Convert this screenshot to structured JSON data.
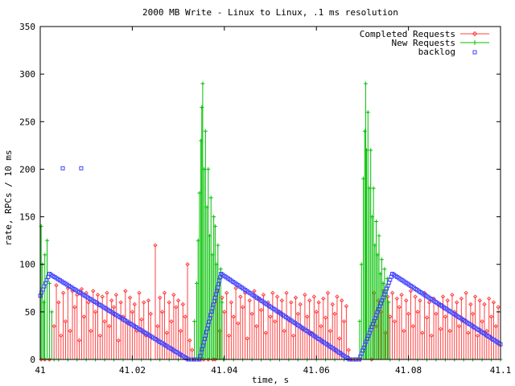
{
  "chart_data": {
    "type": "line",
    "title": "2000 MB Write - Linux to Linux, .1 ms resolution",
    "xlabel": "time, s",
    "ylabel": "rate, RPCs / 10 ms",
    "xlim": [
      41.0,
      41.1
    ],
    "ylim": [
      0,
      350
    ],
    "x_ticks": [
      41,
      41.02,
      41.04,
      41.06,
      41.08,
      41.1
    ],
    "x_tick_labels": [
      "41",
      "41.02",
      "41.04",
      "41.06",
      "41.08",
      "41.1"
    ],
    "y_ticks": [
      0,
      50,
      100,
      150,
      200,
      250,
      300,
      350
    ],
    "grid": false,
    "legend_position": "top-right",
    "series": [
      {
        "name": "Completed Requests",
        "style": "impulses",
        "color": "#ff4040",
        "marker": "diamond",
        "points": [
          [
            41.0002,
            0
          ],
          [
            41.001,
            0
          ],
          [
            41.002,
            0
          ],
          [
            41.003,
            35
          ],
          [
            41.0035,
            78
          ],
          [
            41.004,
            60
          ],
          [
            41.0045,
            25
          ],
          [
            41.005,
            70
          ],
          [
            41.0055,
            40
          ],
          [
            41.006,
            75
          ],
          [
            41.0065,
            30
          ],
          [
            41.007,
            72
          ],
          [
            41.0075,
            55
          ],
          [
            41.008,
            68
          ],
          [
            41.0085,
            20
          ],
          [
            41.009,
            74
          ],
          [
            41.0095,
            45
          ],
          [
            41.01,
            70
          ],
          [
            41.0105,
            60
          ],
          [
            41.011,
            30
          ],
          [
            41.0115,
            72
          ],
          [
            41.012,
            50
          ],
          [
            41.0125,
            68
          ],
          [
            41.013,
            25
          ],
          [
            41.0135,
            66
          ],
          [
            41.014,
            40
          ],
          [
            41.0145,
            70
          ],
          [
            41.015,
            35
          ],
          [
            41.0155,
            62
          ],
          [
            41.016,
            55
          ],
          [
            41.0165,
            68
          ],
          [
            41.017,
            20
          ],
          [
            41.0175,
            60
          ],
          [
            41.018,
            45
          ],
          [
            41.0185,
            72
          ],
          [
            41.019,
            38
          ],
          [
            41.0195,
            65
          ],
          [
            41.02,
            50
          ],
          [
            41.0205,
            58
          ],
          [
            41.021,
            30
          ],
          [
            41.0215,
            70
          ],
          [
            41.022,
            42
          ],
          [
            41.0225,
            60
          ],
          [
            41.023,
            25
          ],
          [
            41.0235,
            62
          ],
          [
            41.024,
            48
          ],
          [
            41.025,
            120
          ],
          [
            41.0255,
            35
          ],
          [
            41.026,
            65
          ],
          [
            41.0265,
            50
          ],
          [
            41.027,
            70
          ],
          [
            41.0275,
            28
          ],
          [
            41.028,
            60
          ],
          [
            41.0285,
            40
          ],
          [
            41.029,
            68
          ],
          [
            41.0295,
            55
          ],
          [
            41.03,
            62
          ],
          [
            41.0305,
            30
          ],
          [
            41.031,
            58
          ],
          [
            41.0315,
            45
          ],
          [
            41.032,
            100
          ],
          [
            41.0325,
            20
          ],
          [
            41.033,
            10
          ],
          [
            41.0335,
            0
          ],
          [
            41.0345,
            0
          ],
          [
            41.0355,
            0
          ],
          [
            41.0365,
            0
          ],
          [
            41.0375,
            0
          ],
          [
            41.038,
            0
          ],
          [
            41.0385,
            72
          ],
          [
            41.039,
            30
          ],
          [
            41.0395,
            65
          ],
          [
            41.04,
            50
          ],
          [
            41.0405,
            70
          ],
          [
            41.041,
            25
          ],
          [
            41.0415,
            60
          ],
          [
            41.042,
            45
          ],
          [
            41.0425,
            75
          ],
          [
            41.043,
            38
          ],
          [
            41.0435,
            66
          ],
          [
            41.044,
            55
          ],
          [
            41.0445,
            70
          ],
          [
            41.045,
            22
          ],
          [
            41.0455,
            62
          ],
          [
            41.046,
            48
          ],
          [
            41.0465,
            72
          ],
          [
            41.047,
            35
          ],
          [
            41.0475,
            64
          ],
          [
            41.048,
            52
          ],
          [
            41.0485,
            68
          ],
          [
            41.049,
            28
          ],
          [
            41.0495,
            60
          ],
          [
            41.05,
            45
          ],
          [
            41.0505,
            70
          ],
          [
            41.051,
            40
          ],
          [
            41.0515,
            66
          ],
          [
            41.052,
            50
          ],
          [
            41.0525,
            62
          ],
          [
            41.053,
            30
          ],
          [
            41.0535,
            70
          ],
          [
            41.054,
            42
          ],
          [
            41.0545,
            60
          ],
          [
            41.055,
            25
          ],
          [
            41.0555,
            65
          ],
          [
            41.056,
            48
          ],
          [
            41.0565,
            58
          ],
          [
            41.057,
            32
          ],
          [
            41.0575,
            68
          ],
          [
            41.058,
            45
          ],
          [
            41.0585,
            62
          ],
          [
            41.059,
            28
          ],
          [
            41.0595,
            66
          ],
          [
            41.06,
            50
          ],
          [
            41.0605,
            60
          ],
          [
            41.061,
            35
          ],
          [
            41.0615,
            64
          ],
          [
            41.062,
            44
          ],
          [
            41.0625,
            70
          ],
          [
            41.063,
            30
          ],
          [
            41.0635,
            58
          ],
          [
            41.064,
            48
          ],
          [
            41.0645,
            66
          ],
          [
            41.065,
            22
          ],
          [
            41.0655,
            62
          ],
          [
            41.066,
            40
          ],
          [
            41.0665,
            56
          ],
          [
            41.067,
            10
          ],
          [
            41.0675,
            0
          ],
          [
            41.0685,
            0
          ],
          [
            41.0695,
            0
          ],
          [
            41.072,
            0
          ],
          [
            41.0725,
            70
          ],
          [
            41.073,
            35
          ],
          [
            41.0735,
            62
          ],
          [
            41.074,
            50
          ],
          [
            41.0745,
            72
          ],
          [
            41.075,
            28
          ],
          [
            41.0755,
            66
          ],
          [
            41.076,
            45
          ],
          [
            41.0765,
            70
          ],
          [
            41.077,
            40
          ],
          [
            41.0775,
            64
          ],
          [
            41.078,
            55
          ],
          [
            41.0785,
            68
          ],
          [
            41.079,
            30
          ],
          [
            41.0795,
            62
          ],
          [
            41.08,
            48
          ],
          [
            41.0805,
            72
          ],
          [
            41.081,
            35
          ],
          [
            41.0815,
            66
          ],
          [
            41.082,
            50
          ],
          [
            41.0825,
            62
          ],
          [
            41.083,
            28
          ],
          [
            41.0835,
            70
          ],
          [
            41.084,
            44
          ],
          [
            41.0845,
            60
          ],
          [
            41.085,
            25
          ],
          [
            41.0855,
            64
          ],
          [
            41.086,
            48
          ],
          [
            41.0865,
            58
          ],
          [
            41.087,
            32
          ],
          [
            41.0875,
            66
          ],
          [
            41.088,
            45
          ],
          [
            41.0885,
            62
          ],
          [
            41.089,
            30
          ],
          [
            41.0895,
            68
          ],
          [
            41.09,
            50
          ],
          [
            41.0905,
            60
          ],
          [
            41.091,
            35
          ],
          [
            41.0915,
            64
          ],
          [
            41.092,
            42
          ],
          [
            41.0925,
            70
          ],
          [
            41.093,
            28
          ],
          [
            41.0935,
            58
          ],
          [
            41.094,
            48
          ],
          [
            41.0945,
            66
          ],
          [
            41.095,
            25
          ],
          [
            41.0955,
            62
          ],
          [
            41.096,
            40
          ],
          [
            41.0965,
            58
          ],
          [
            41.097,
            30
          ],
          [
            41.0975,
            64
          ],
          [
            41.098,
            45
          ],
          [
            41.0985,
            60
          ],
          [
            41.099,
            35
          ],
          [
            41.0995,
            55
          ]
        ]
      },
      {
        "name": "New Requests",
        "style": "impulses",
        "color": "#00c000",
        "marker": "plus",
        "points": [
          [
            41.0002,
            140
          ],
          [
            41.0005,
            100
          ],
          [
            41.0008,
            60
          ],
          [
            41.001,
            110
          ],
          [
            41.0015,
            125
          ],
          [
            41.002,
            80
          ],
          [
            41.0025,
            50
          ],
          [
            41.003,
            0
          ],
          [
            41.004,
            0
          ],
          [
            41.006,
            0
          ],
          [
            41.008,
            0
          ],
          [
            41.01,
            0
          ],
          [
            41.012,
            0
          ],
          [
            41.014,
            0
          ],
          [
            41.016,
            0
          ],
          [
            41.018,
            0
          ],
          [
            41.02,
            0
          ],
          [
            41.022,
            0
          ],
          [
            41.024,
            0
          ],
          [
            41.026,
            0
          ],
          [
            41.028,
            0
          ],
          [
            41.03,
            0
          ],
          [
            41.032,
            0
          ],
          [
            41.033,
            0
          ],
          [
            41.0335,
            40
          ],
          [
            41.034,
            80
          ],
          [
            41.0343,
            125
          ],
          [
            41.0346,
            175
          ],
          [
            41.0349,
            230
          ],
          [
            41.0351,
            265
          ],
          [
            41.0353,
            290
          ],
          [
            41.0356,
            200
          ],
          [
            41.0359,
            240
          ],
          [
            41.0362,
            160
          ],
          [
            41.0365,
            200
          ],
          [
            41.0368,
            130
          ],
          [
            41.0371,
            170
          ],
          [
            41.0374,
            110
          ],
          [
            41.0377,
            150
          ],
          [
            41.038,
            140
          ],
          [
            41.0383,
            100
          ],
          [
            41.0386,
            120
          ],
          [
            41.0389,
            85
          ],
          [
            41.0392,
            95
          ],
          [
            41.0395,
            60
          ],
          [
            41.0398,
            0
          ],
          [
            41.04,
            0
          ],
          [
            41.042,
            0
          ],
          [
            41.044,
            0
          ],
          [
            41.046,
            0
          ],
          [
            41.048,
            0
          ],
          [
            41.05,
            0
          ],
          [
            41.052,
            0
          ],
          [
            41.054,
            0
          ],
          [
            41.056,
            0
          ],
          [
            41.058,
            0
          ],
          [
            41.06,
            0
          ],
          [
            41.062,
            0
          ],
          [
            41.064,
            0
          ],
          [
            41.066,
            0
          ],
          [
            41.068,
            0
          ],
          [
            41.069,
            0
          ],
          [
            41.0694,
            40
          ],
          [
            41.0698,
            100
          ],
          [
            41.0702,
            190
          ],
          [
            41.0705,
            240
          ],
          [
            41.0707,
            290
          ],
          [
            41.0709,
            220
          ],
          [
            41.0712,
            260
          ],
          [
            41.0715,
            180
          ],
          [
            41.0718,
            220
          ],
          [
            41.0721,
            150
          ],
          [
            41.0724,
            180
          ],
          [
            41.0727,
            120
          ],
          [
            41.073,
            145
          ],
          [
            41.0733,
            110
          ],
          [
            41.0736,
            130
          ],
          [
            41.0739,
            90
          ],
          [
            41.0742,
            105
          ],
          [
            41.0745,
            80
          ],
          [
            41.0748,
            95
          ],
          [
            41.0751,
            70
          ],
          [
            41.0754,
            85
          ],
          [
            41.0757,
            60
          ],
          [
            41.076,
            0
          ],
          [
            41.078,
            0
          ],
          [
            41.08,
            0
          ],
          [
            41.082,
            0
          ],
          [
            41.084,
            0
          ],
          [
            41.086,
            0
          ],
          [
            41.088,
            0
          ],
          [
            41.09,
            0
          ],
          [
            41.092,
            0
          ],
          [
            41.094,
            0
          ],
          [
            41.096,
            0
          ],
          [
            41.098,
            0
          ],
          [
            41.1,
            0
          ]
        ]
      },
      {
        "name": "backlog",
        "style": "points",
        "color": "#4040ff",
        "marker": "square",
        "segments": [
          {
            "x_start": 41.0,
            "x_end": 41.002,
            "y_start": 67,
            "y_end": 90,
            "n": 8
          },
          {
            "x_start": 41.002,
            "x_end": 41.0322,
            "y_start": 90,
            "y_end": 0,
            "n": 80
          },
          {
            "x_start": 41.0322,
            "x_end": 41.0346,
            "y_start": 0,
            "y_end": 0,
            "n": 5
          },
          {
            "x_start": 41.0346,
            "x_end": 41.0393,
            "y_start": 0,
            "y_end": 90,
            "n": 26
          },
          {
            "x_start": 41.0393,
            "x_end": 41.0672,
            "y_start": 90,
            "y_end": 0,
            "n": 76
          },
          {
            "x_start": 41.0672,
            "x_end": 41.0693,
            "y_start": 0,
            "y_end": 0,
            "n": 4
          },
          {
            "x_start": 41.0693,
            "x_end": 41.0765,
            "y_start": 0,
            "y_end": 90,
            "n": 30
          },
          {
            "x_start": 41.0765,
            "x_end": 41.1,
            "y_start": 90,
            "y_end": 16,
            "n": 66
          }
        ],
        "points": [
          [
            41.0049,
            201
          ],
          [
            41.0089,
            201
          ]
        ]
      }
    ]
  }
}
